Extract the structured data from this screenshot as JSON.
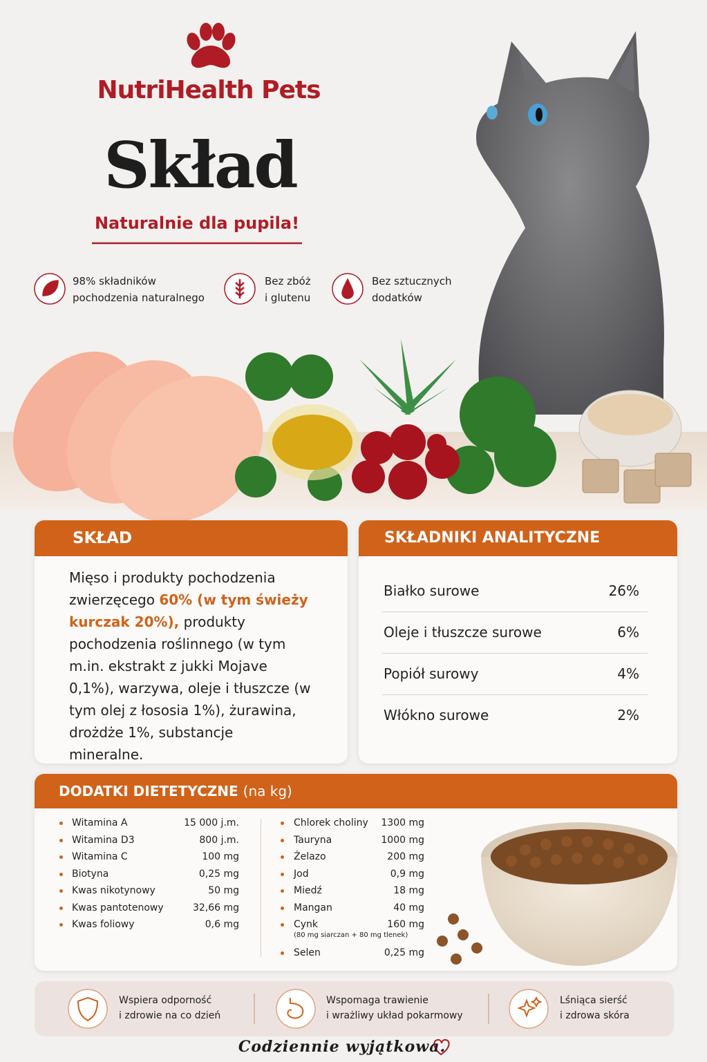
{
  "brand": "NutriHealth Pets",
  "title": "Skład",
  "subtitle": "Naturalnie dla pupila!",
  "features": [
    {
      "lines": [
        "98% składników",
        "pochodzenia naturalnego"
      ]
    },
    {
      "lines": [
        "Bez zbóż",
        "i glutenu"
      ]
    },
    {
      "lines": [
        "Bez sztucznych",
        "dodatków"
      ]
    }
  ],
  "composition": {
    "heading": "SKŁAD",
    "text_before": "Mięso i produkty pochodzenia zwierzęcego",
    "highlight": "60% (w tym świeży kurczak 20%),",
    "text_after": "produkty pochodzenia roślinnego (w tym m.in. ekstrakt z jukki Mojave 0,1%), warzywa, oleje i tłuszcze (w tym olej z łososia 1%), żurawina, drożdże 1%, substancje mineralne."
  },
  "analytical": {
    "heading": "SKŁADNIKI ANALITYCZNE",
    "rows": [
      {
        "name": "Białko surowe",
        "value": "26%"
      },
      {
        "name": "Oleje i tłuszcze surowe",
        "value": "6%"
      },
      {
        "name": "Popiół surowy",
        "value": "4%"
      },
      {
        "name": "Włókno surowe",
        "value": "2%"
      }
    ]
  },
  "additives": {
    "heading": "DODATKI DIETETYCZNE",
    "unit": "(na kg)",
    "left": [
      {
        "name": "Witamina A",
        "amount": "15 000 j.m."
      },
      {
        "name": "Witamina D3",
        "amount": "800 j.m."
      },
      {
        "name": "Witamina C",
        "amount": "100 mg"
      },
      {
        "name": "Biotyna",
        "amount": "0,25 mg"
      },
      {
        "name": "Kwas nikotynowy",
        "amount": "50 mg"
      },
      {
        "name": "Kwas pantotenowy",
        "amount": "32,66 mg"
      },
      {
        "name": "Kwas foliowy",
        "amount": "0,6 mg"
      }
    ],
    "right": [
      {
        "name": "Chlorek choliny",
        "amount": "1300 mg"
      },
      {
        "name": "Tauryna",
        "amount": "1000 mg"
      },
      {
        "name": "Żelazo",
        "amount": "200 mg"
      },
      {
        "name": "Jod",
        "amount": "0,9 mg"
      },
      {
        "name": "Miedź",
        "amount": "18 mg"
      },
      {
        "name": "Mangan",
        "amount": "40 mg"
      },
      {
        "name": "Cynk",
        "amount": "160 mg",
        "note": "(80 mg siarczan + 80 mg tlenek)"
      },
      {
        "name": "Selen",
        "amount": "0,25 mg"
      }
    ]
  },
  "benefits": [
    {
      "lines": [
        "Wspiera odporność",
        "i zdrowie na co dzień"
      ]
    },
    {
      "lines": [
        "Wspomaga trawienie",
        "i wrażliwy układ pokarmowy"
      ]
    },
    {
      "lines": [
        "Lśniąca sierść",
        "i zdrowa skóra"
      ]
    }
  ],
  "footer": "Codziennie wyjątkowa."
}
